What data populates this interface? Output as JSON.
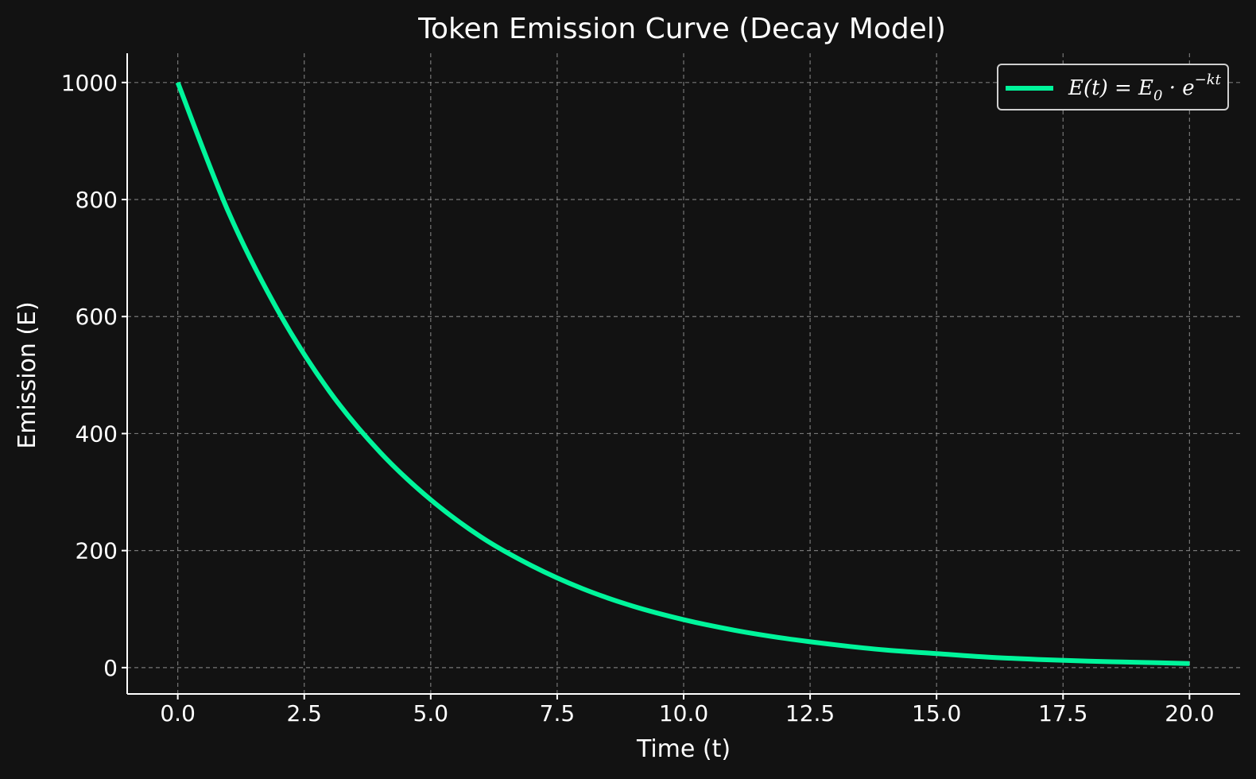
{
  "chart_data": {
    "type": "line",
    "title": "Token Emission Curve (Decay Model)",
    "xlabel": "Time (t)",
    "ylabel": "Emission (E)",
    "xlim": [
      -1,
      21
    ],
    "ylim": [
      -45,
      1050
    ],
    "xticks": [
      0.0,
      2.5,
      5.0,
      7.5,
      10.0,
      12.5,
      15.0,
      17.5,
      20.0
    ],
    "xtick_labels": [
      "0.0",
      "2.5",
      "5.0",
      "7.5",
      "10.0",
      "12.5",
      "15.0",
      "17.5",
      "20.0"
    ],
    "yticks": [
      0,
      200,
      400,
      600,
      800,
      1000
    ],
    "ytick_labels": [
      "0",
      "200",
      "400",
      "600",
      "800",
      "1000"
    ],
    "grid": true,
    "legend_position": "top-right",
    "series": [
      {
        "name": "E(t) = E0 · e^(−kt)",
        "color": "#00f59b",
        "x": [
          0,
          1,
          2,
          3,
          4,
          5,
          6,
          7,
          8,
          9,
          10,
          11,
          12,
          13,
          14,
          15,
          16,
          17,
          18,
          19,
          20
        ],
        "y": [
          1000,
          779,
          607,
          472,
          368,
          287,
          223,
          174,
          135,
          105,
          82,
          64,
          50,
          39,
          30,
          24,
          18,
          14,
          11,
          9,
          7
        ]
      }
    ]
  }
}
